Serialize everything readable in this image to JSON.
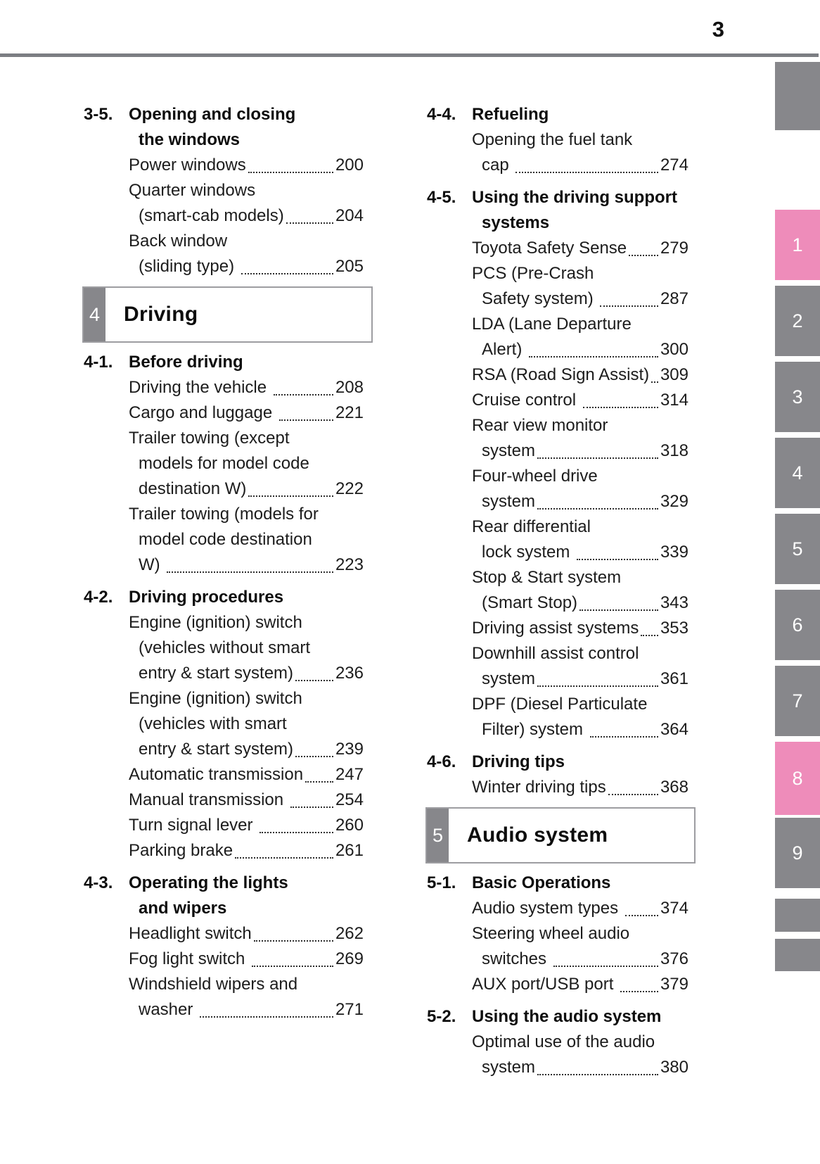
{
  "page": {
    "number": "3"
  },
  "colors": {
    "accent_pink": "#ee8cba",
    "tab_gray": "#87878b",
    "rule_gray": "#7c7e83",
    "box_border_gray": "#9d9da1",
    "text_black": "#1c1c1c"
  },
  "columns": {
    "left": {
      "sections": [
        {
          "type": "section",
          "num": "3-5.",
          "title_lines": [
            "Opening and closing",
            "the windows"
          ],
          "items": [
            {
              "lines": [
                "Power windows"
              ],
              "page": "200"
            },
            {
              "lines": [
                "Quarter windows",
                "(smart-cab models)"
              ],
              "page": "204"
            },
            {
              "lines": [
                "Back window",
                "(sliding type) "
              ],
              "page": "205"
            }
          ]
        },
        {
          "type": "chapter",
          "num": "4",
          "title": "Driving"
        },
        {
          "type": "section",
          "num": "4-1.",
          "title_lines": [
            "Before driving"
          ],
          "items": [
            {
              "lines": [
                "Driving the vehicle "
              ],
              "page": "208"
            },
            {
              "lines": [
                "Cargo and luggage "
              ],
              "page": "221"
            },
            {
              "lines": [
                "Trailer towing (except",
                "models for model code",
                "destination W)"
              ],
              "page": "222"
            },
            {
              "lines": [
                "Trailer towing (models for",
                "model code destination",
                "W) "
              ],
              "page": "223"
            }
          ]
        },
        {
          "type": "section",
          "num": "4-2.",
          "title_lines": [
            "Driving procedures"
          ],
          "items": [
            {
              "lines": [
                "Engine (ignition) switch",
                "(vehicles without smart",
                "entry & start system)"
              ],
              "page": "236"
            },
            {
              "lines": [
                "Engine (ignition) switch",
                "(vehicles with smart",
                "entry & start system)"
              ],
              "page": "239"
            },
            {
              "lines": [
                "Automatic transmission"
              ],
              "page": "247"
            },
            {
              "lines": [
                "Manual transmission "
              ],
              "page": "254"
            },
            {
              "lines": [
                "Turn signal lever "
              ],
              "page": "260"
            },
            {
              "lines": [
                "Parking brake"
              ],
              "page": "261"
            }
          ]
        },
        {
          "type": "section",
          "num": "4-3.",
          "title_lines": [
            "Operating the lights",
            "and wipers"
          ],
          "items": [
            {
              "lines": [
                "Headlight switch"
              ],
              "page": "262"
            },
            {
              "lines": [
                "Fog light switch "
              ],
              "page": "269"
            },
            {
              "lines": [
                "Windshield wipers and",
                "washer "
              ],
              "page": "271"
            }
          ]
        }
      ]
    },
    "right": {
      "sections": [
        {
          "type": "section",
          "num": "4-4.",
          "title_lines": [
            "Refueling"
          ],
          "items": [
            {
              "lines": [
                "Opening the fuel tank",
                "cap "
              ],
              "page": "274"
            }
          ]
        },
        {
          "type": "section",
          "num": "4-5.",
          "title_lines": [
            "Using the driving support",
            "systems"
          ],
          "items": [
            {
              "lines": [
                "Toyota Safety Sense"
              ],
              "page": "279"
            },
            {
              "lines": [
                "PCS (Pre-Crash",
                "Safety system) "
              ],
              "page": "287"
            },
            {
              "lines": [
                "LDA (Lane Departure",
                "Alert) "
              ],
              "page": "300"
            },
            {
              "lines": [
                "RSA (Road Sign Assist)"
              ],
              "page": "309"
            },
            {
              "lines": [
                "Cruise control "
              ],
              "page": "314"
            },
            {
              "lines": [
                "Rear view monitor",
                "system"
              ],
              "page": "318"
            },
            {
              "lines": [
                "Four-wheel drive",
                "system"
              ],
              "page": "329"
            },
            {
              "lines": [
                "Rear differential",
                "lock system "
              ],
              "page": "339"
            },
            {
              "lines": [
                "Stop & Start system",
                "(Smart Stop)"
              ],
              "page": "343"
            },
            {
              "lines": [
                "Driving assist systems"
              ],
              "page": "353"
            },
            {
              "lines": [
                "Downhill assist control",
                "system"
              ],
              "page": "361"
            },
            {
              "lines": [
                "DPF (Diesel Particulate",
                "Filter) system "
              ],
              "page": "364"
            }
          ]
        },
        {
          "type": "section",
          "num": "4-6.",
          "title_lines": [
            "Driving tips"
          ],
          "items": [
            {
              "lines": [
                "Winter driving tips"
              ],
              "page": "368"
            }
          ]
        },
        {
          "type": "chapter",
          "num": "5",
          "title": "Audio system"
        },
        {
          "type": "section",
          "num": "5-1.",
          "title_lines": [
            "Basic Operations"
          ],
          "items": [
            {
              "lines": [
                "Audio system types "
              ],
              "page": "374"
            },
            {
              "lines": [
                "Steering wheel audio",
                "switches "
              ],
              "page": "376"
            },
            {
              "lines": [
                "AUX port/USB port "
              ],
              "page": "379"
            }
          ]
        },
        {
          "type": "section",
          "num": "5-2.",
          "title_lines": [
            "Using the audio system"
          ],
          "items": [
            {
              "lines": [
                "Optimal use of the audio",
                "system"
              ],
              "page": "380"
            }
          ]
        }
      ]
    }
  },
  "side_tabs": {
    "items": [
      {
        "label": "",
        "variant": "top"
      },
      {
        "label": "1",
        "variant": "accent"
      },
      {
        "label": "2",
        "variant": "normal"
      },
      {
        "label": "3",
        "variant": "normal"
      },
      {
        "label": "4",
        "variant": "normal"
      },
      {
        "label": "5",
        "variant": "normal"
      },
      {
        "label": "6",
        "variant": "normal"
      },
      {
        "label": "7",
        "variant": "normal"
      },
      {
        "label": "8",
        "variant": "accent"
      },
      {
        "label": "9",
        "variant": "normal"
      },
      {
        "label": "",
        "variant": "short"
      },
      {
        "label": "",
        "variant": "short"
      }
    ]
  }
}
